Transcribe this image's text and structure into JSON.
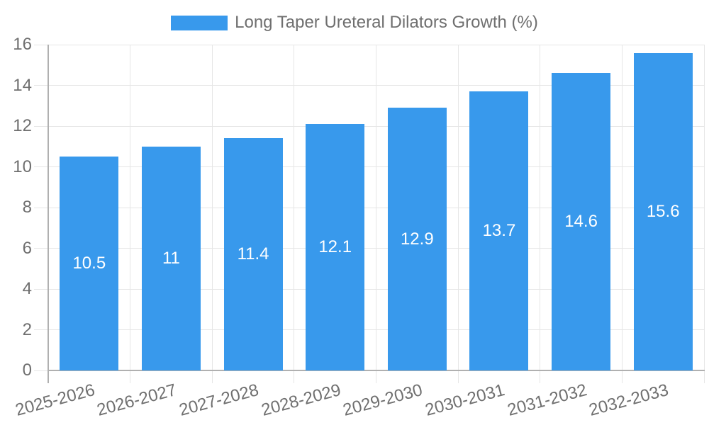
{
  "chart_data": {
    "type": "bar",
    "legend": "Long Taper Ureteral Dilators Growth (%)",
    "legend_position": "top",
    "categories": [
      "2025-2026",
      "2026-2027",
      "2027-2028",
      "2028-2029",
      "2029-2030",
      "2030-2031",
      "2031-2032",
      "2032-2033"
    ],
    "series": [
      {
        "name": "Long Taper Ureteral Dilators Growth (%)",
        "values": [
          10.5,
          11,
          11.4,
          12.1,
          12.9,
          13.7,
          14.6,
          15.6
        ],
        "value_labels": [
          "10.5",
          "11",
          "11.4",
          "12.1",
          "12.9",
          "13.7",
          "14.6",
          "15.6"
        ]
      }
    ],
    "xlabel": "",
    "ylabel": "",
    "ylim": [
      0,
      16
    ],
    "yticks": [
      0,
      2,
      4,
      6,
      8,
      10,
      12,
      14,
      16
    ],
    "grid": true,
    "colors": {
      "bar": "#3899ec",
      "grid": "#e6e6e6",
      "axis": "#b0b0b0",
      "text": "#6f6f6f",
      "label": "#ffffff",
      "bg": "#ffffff"
    }
  }
}
